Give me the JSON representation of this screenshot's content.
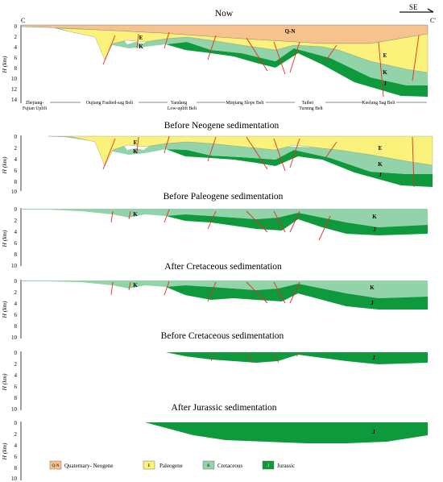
{
  "panels": [
    {
      "title": "Now",
      "axis_max": 14,
      "units": [
        "Q-N",
        "E",
        "K",
        "J"
      ]
    },
    {
      "title": "Before Neogene sedimentation",
      "axis_max": 10,
      "units": [
        "E",
        "K",
        "J"
      ]
    },
    {
      "title": "Before Paleogene sedimentation",
      "axis_max": 10,
      "units": [
        "K",
        "J"
      ]
    },
    {
      "title": "After Cretaceous sedimentation",
      "axis_max": 10,
      "units": [
        "K",
        "J"
      ]
    },
    {
      "title": "Before Cretaceous sedimentation",
      "axis_max": 10,
      "units": [
        "J"
      ]
    },
    {
      "title": "After Jurassic sedimentation",
      "axis_max": 10,
      "units": [
        "J"
      ]
    }
  ],
  "y_axis_label": "H (km)",
  "section": {
    "start": "C",
    "end": "C'",
    "direction": "SE"
  },
  "belts": [
    [
      "Zhejiang-",
      "Fujian Uplift"
    ],
    [
      "Oujiang Faulted-sag Belt"
    ],
    [
      "Yandang",
      "Low-uplift Belt"
    ],
    [
      "Minjiang Slope Belt"
    ],
    [
      "Taibei",
      "Turning Belt"
    ],
    [
      "Keelung Sag Belt"
    ]
  ],
  "legend": [
    {
      "code": "Q-N",
      "label": "Quaternary- Neogene",
      "color": "#f6c38f"
    },
    {
      "code": "E",
      "label": "Paleogene",
      "color": "#faf27a"
    },
    {
      "code": "K",
      "label": "Cretaceous",
      "color": "#92d3a9"
    },
    {
      "code": "J",
      "label": "Jurassic",
      "color": "#0e9a3c"
    }
  ],
  "colors": {
    "fault": "#e0301e",
    "outline": "#333333"
  }
}
